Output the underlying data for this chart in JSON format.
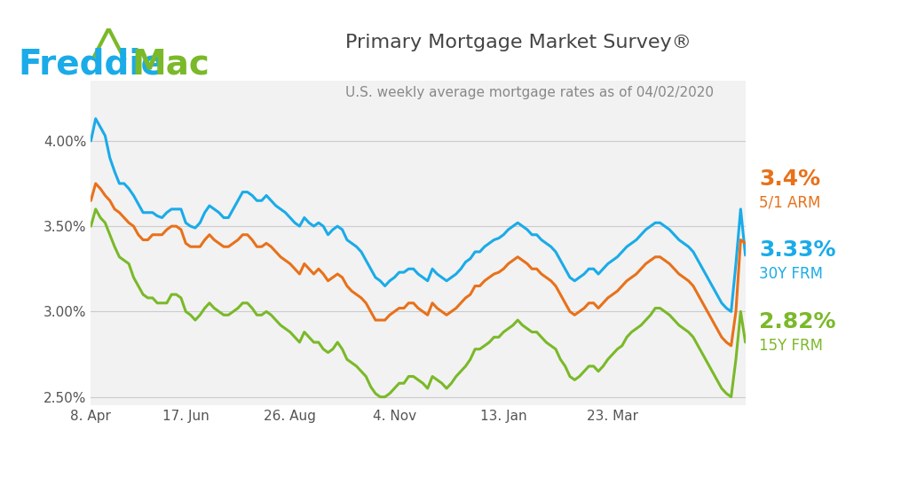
{
  "title": "Primary Mortgage Market Survey®",
  "subtitle": "U.S. weekly average mortgage rates as of 04/02/2020",
  "freddie_blue": "#1AABE8",
  "freddie_green": "#7AB929",
  "background_color": "#FFFFFF",
  "plot_bg_color": "#F2F2F2",
  "line_30y_color": "#1AABE8",
  "line_5y_color": "#E8711A",
  "line_15y_color": "#7AB929",
  "ylim": [
    2.45,
    4.35
  ],
  "yticks": [
    2.5,
    3.0,
    3.5,
    4.0
  ],
  "ytick_labels": [
    "2.50%",
    "3.00%",
    "3.50%",
    "4.00%"
  ],
  "xtick_labels": [
    "8. Apr",
    "17. Jun",
    "26. Aug",
    "4. Nov",
    "13. Jan",
    "23. Mar"
  ],
  "label_30y": "3.33%",
  "label_30y_sub": "30Y FRM",
  "label_5y": "3.4%",
  "label_5y_sub": "5/1 ARM",
  "label_15y": "2.82%",
  "label_15y_sub": "15Y FRM",
  "y_30yr": [
    4.0,
    4.13,
    4.08,
    4.03,
    3.9,
    3.82,
    3.75,
    3.75,
    3.72,
    3.68,
    3.63,
    3.58,
    3.58,
    3.58,
    3.56,
    3.55,
    3.58,
    3.6,
    3.6,
    3.6,
    3.52,
    3.5,
    3.49,
    3.52,
    3.58,
    3.62,
    3.6,
    3.58,
    3.55,
    3.55,
    3.6,
    3.65,
    3.7,
    3.7,
    3.68,
    3.65,
    3.65,
    3.68,
    3.65,
    3.62,
    3.6,
    3.58,
    3.55,
    3.52,
    3.5,
    3.55,
    3.52,
    3.5,
    3.52,
    3.5,
    3.45,
    3.48,
    3.5,
    3.48,
    3.42,
    3.4,
    3.38,
    3.35,
    3.3,
    3.25,
    3.2,
    3.18,
    3.15,
    3.18,
    3.2,
    3.23,
    3.23,
    3.25,
    3.25,
    3.22,
    3.2,
    3.18,
    3.25,
    3.22,
    3.2,
    3.18,
    3.2,
    3.22,
    3.25,
    3.29,
    3.31,
    3.35,
    3.35,
    3.38,
    3.4,
    3.42,
    3.43,
    3.45,
    3.48,
    3.5,
    3.52,
    3.5,
    3.48,
    3.45,
    3.45,
    3.42,
    3.4,
    3.38,
    3.35,
    3.3,
    3.25,
    3.2,
    3.18,
    3.2,
    3.22,
    3.25,
    3.25,
    3.22,
    3.25,
    3.28,
    3.3,
    3.32,
    3.35,
    3.38,
    3.4,
    3.42,
    3.45,
    3.48,
    3.5,
    3.52,
    3.52,
    3.5,
    3.48,
    3.45,
    3.42,
    3.4,
    3.38,
    3.35,
    3.3,
    3.25,
    3.2,
    3.15,
    3.1,
    3.05,
    3.02,
    3.0,
    3.28,
    3.6,
    3.33
  ],
  "y_5yr": [
    3.65,
    3.75,
    3.72,
    3.68,
    3.65,
    3.6,
    3.58,
    3.55,
    3.52,
    3.5,
    3.45,
    3.42,
    3.42,
    3.45,
    3.45,
    3.45,
    3.48,
    3.5,
    3.5,
    3.48,
    3.4,
    3.38,
    3.38,
    3.38,
    3.42,
    3.45,
    3.42,
    3.4,
    3.38,
    3.38,
    3.4,
    3.42,
    3.45,
    3.45,
    3.42,
    3.38,
    3.38,
    3.4,
    3.38,
    3.35,
    3.32,
    3.3,
    3.28,
    3.25,
    3.22,
    3.28,
    3.25,
    3.22,
    3.25,
    3.22,
    3.18,
    3.2,
    3.22,
    3.2,
    3.15,
    3.12,
    3.1,
    3.08,
    3.05,
    3.0,
    2.95,
    2.95,
    2.95,
    2.98,
    3.0,
    3.02,
    3.02,
    3.05,
    3.05,
    3.02,
    3.0,
    2.98,
    3.05,
    3.02,
    3.0,
    2.98,
    3.0,
    3.02,
    3.05,
    3.08,
    3.1,
    3.15,
    3.15,
    3.18,
    3.2,
    3.22,
    3.23,
    3.25,
    3.28,
    3.3,
    3.32,
    3.3,
    3.28,
    3.25,
    3.25,
    3.22,
    3.2,
    3.18,
    3.15,
    3.1,
    3.05,
    3.0,
    2.98,
    3.0,
    3.02,
    3.05,
    3.05,
    3.02,
    3.05,
    3.08,
    3.1,
    3.12,
    3.15,
    3.18,
    3.2,
    3.22,
    3.25,
    3.28,
    3.3,
    3.32,
    3.32,
    3.3,
    3.28,
    3.25,
    3.22,
    3.2,
    3.18,
    3.15,
    3.1,
    3.05,
    3.0,
    2.95,
    2.9,
    2.85,
    2.82,
    2.8,
    3.0,
    3.42,
    3.4
  ],
  "y_15yr": [
    3.5,
    3.6,
    3.55,
    3.52,
    3.45,
    3.38,
    3.32,
    3.3,
    3.28,
    3.2,
    3.15,
    3.1,
    3.08,
    3.08,
    3.05,
    3.05,
    3.05,
    3.1,
    3.1,
    3.08,
    3.0,
    2.98,
    2.95,
    2.98,
    3.02,
    3.05,
    3.02,
    3.0,
    2.98,
    2.98,
    3.0,
    3.02,
    3.05,
    3.05,
    3.02,
    2.98,
    2.98,
    3.0,
    2.98,
    2.95,
    2.92,
    2.9,
    2.88,
    2.85,
    2.82,
    2.88,
    2.85,
    2.82,
    2.82,
    2.78,
    2.76,
    2.78,
    2.82,
    2.78,
    2.72,
    2.7,
    2.68,
    2.65,
    2.62,
    2.56,
    2.52,
    2.5,
    2.5,
    2.52,
    2.55,
    2.58,
    2.58,
    2.62,
    2.62,
    2.6,
    2.58,
    2.55,
    2.62,
    2.6,
    2.58,
    2.55,
    2.58,
    2.62,
    2.65,
    2.68,
    2.72,
    2.78,
    2.78,
    2.8,
    2.82,
    2.85,
    2.85,
    2.88,
    2.9,
    2.92,
    2.95,
    2.92,
    2.9,
    2.88,
    2.88,
    2.85,
    2.82,
    2.8,
    2.78,
    2.72,
    2.68,
    2.62,
    2.6,
    2.62,
    2.65,
    2.68,
    2.68,
    2.65,
    2.68,
    2.72,
    2.75,
    2.78,
    2.8,
    2.85,
    2.88,
    2.9,
    2.92,
    2.95,
    2.98,
    3.02,
    3.02,
    3.0,
    2.98,
    2.95,
    2.92,
    2.9,
    2.88,
    2.85,
    2.8,
    2.75,
    2.7,
    2.65,
    2.6,
    2.55,
    2.52,
    2.5,
    2.72,
    3.0,
    2.82
  ]
}
